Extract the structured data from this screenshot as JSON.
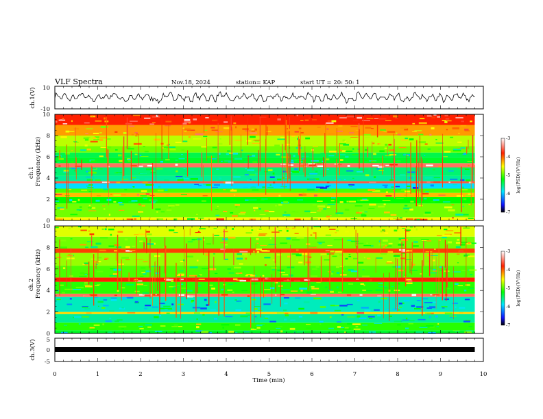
{
  "header": {
    "title": "VLF Spectra",
    "date": "Nov.18, 2024",
    "station": "station= KAP",
    "start": "start  UT =   20: 50: 1"
  },
  "colors": {
    "background": "#ffffff",
    "axis": "#000000"
  },
  "chart_data": [
    {
      "type": "line",
      "name": "ch1-waveform",
      "ylabel": "ch.1(V)",
      "ylim": [
        -10,
        10
      ],
      "yticks": [
        "10",
        "-10"
      ],
      "xlim": [
        0,
        10
      ],
      "approx_range_V": [
        -4,
        5
      ],
      "sample_trace_V": [
        2,
        -1,
        3,
        -2,
        1,
        4,
        -3,
        0,
        2,
        -4,
        3,
        1,
        -2,
        2,
        -1,
        4,
        -3,
        2,
        0,
        -2,
        3,
        -1,
        1,
        4,
        -2,
        0,
        2,
        -3,
        3,
        1,
        -1,
        2,
        -4,
        3,
        0,
        1,
        -2,
        4,
        -1,
        2
      ]
    },
    {
      "type": "heatmap",
      "name": "ch1-spectrogram",
      "ylabel": "Frequency (kHz)",
      "channel_label": "ch.1",
      "ylim": [
        0,
        10
      ],
      "yticks": [
        "0",
        "2",
        "4",
        "6",
        "8",
        "10"
      ],
      "xlim": [
        0,
        9.8
      ],
      "colorbar": {
        "label": "log(PSD)(V²/Hz)",
        "range": [
          -7,
          -3
        ],
        "ticks": [
          "-3",
          "-4",
          "-5",
          "-6",
          "-7"
        ]
      },
      "bands_kHz": [
        {
          "from": 0,
          "to": 0.3,
          "level": -4.5
        },
        {
          "from": 0.3,
          "to": 1.6,
          "level": -4.9
        },
        {
          "from": 1.6,
          "to": 2.2,
          "level": -5.2
        },
        {
          "from": 2.2,
          "to": 2.6,
          "level": -4.3
        },
        {
          "from": 2.6,
          "to": 3.0,
          "level": -5.0
        },
        {
          "from": 3.0,
          "to": 3.5,
          "level": -5.9
        },
        {
          "from": 3.5,
          "to": 3.7,
          "level": -3.6
        },
        {
          "from": 3.7,
          "to": 4.2,
          "level": -5.6
        },
        {
          "from": 4.2,
          "to": 5.0,
          "level": -5.5
        },
        {
          "from": 5.0,
          "to": 5.4,
          "level": -3.5
        },
        {
          "from": 5.4,
          "to": 5.9,
          "level": -5.3
        },
        {
          "from": 5.9,
          "to": 6.4,
          "level": -5.4
        },
        {
          "from": 6.4,
          "to": 7.0,
          "level": -4.9
        },
        {
          "from": 7.0,
          "to": 8.0,
          "level": -4.7
        },
        {
          "from": 8.0,
          "to": 9.0,
          "level": -4.2
        },
        {
          "from": 9.0,
          "to": 10.0,
          "level": -3.8
        }
      ]
    },
    {
      "type": "heatmap",
      "name": "ch2-spectrogram",
      "ylabel": "Frequency (kHz)",
      "channel_label": "ch.2",
      "ylim": [
        0,
        10
      ],
      "yticks": [
        "0",
        "2",
        "4",
        "6",
        "8",
        "10"
      ],
      "xlim": [
        0,
        9.8
      ],
      "colorbar": {
        "label": "log(PSD)(V²/Hz)",
        "range": [
          -7,
          -3
        ],
        "ticks": [
          "-3",
          "-4",
          "-5",
          "-6",
          "-7"
        ]
      },
      "bands_kHz": [
        {
          "from": 0,
          "to": 0.3,
          "level": -5.3
        },
        {
          "from": 0.3,
          "to": 1.0,
          "level": -5.1
        },
        {
          "from": 1.0,
          "to": 1.8,
          "level": -5.6
        },
        {
          "from": 1.8,
          "to": 2.0,
          "level": -4.4
        },
        {
          "from": 2.0,
          "to": 3.4,
          "level": -5.7
        },
        {
          "from": 3.4,
          "to": 3.7,
          "level": -3.5
        },
        {
          "from": 3.7,
          "to": 4.8,
          "level": -5.1
        },
        {
          "from": 4.8,
          "to": 5.2,
          "level": -3.8
        },
        {
          "from": 5.2,
          "to": 6.3,
          "level": -5.0
        },
        {
          "from": 6.3,
          "to": 7.5,
          "level": -4.8
        },
        {
          "from": 7.5,
          "to": 7.9,
          "level": -3.9
        },
        {
          "from": 7.9,
          "to": 9.0,
          "level": -4.9
        },
        {
          "from": 9.0,
          "to": 10.0,
          "level": -4.6
        }
      ]
    },
    {
      "type": "line",
      "name": "ch3-signal",
      "ylabel": "ch.3(V)",
      "ylim": [
        -5,
        5
      ],
      "yticks": [
        "5",
        "0",
        "-5"
      ],
      "xlim": [
        0,
        10
      ],
      "level_V": 0,
      "xlabel": "Time (min)",
      "xticks": [
        "0",
        "1",
        "2",
        "3",
        "4",
        "5",
        "6",
        "7",
        "8",
        "9",
        "10"
      ]
    }
  ]
}
